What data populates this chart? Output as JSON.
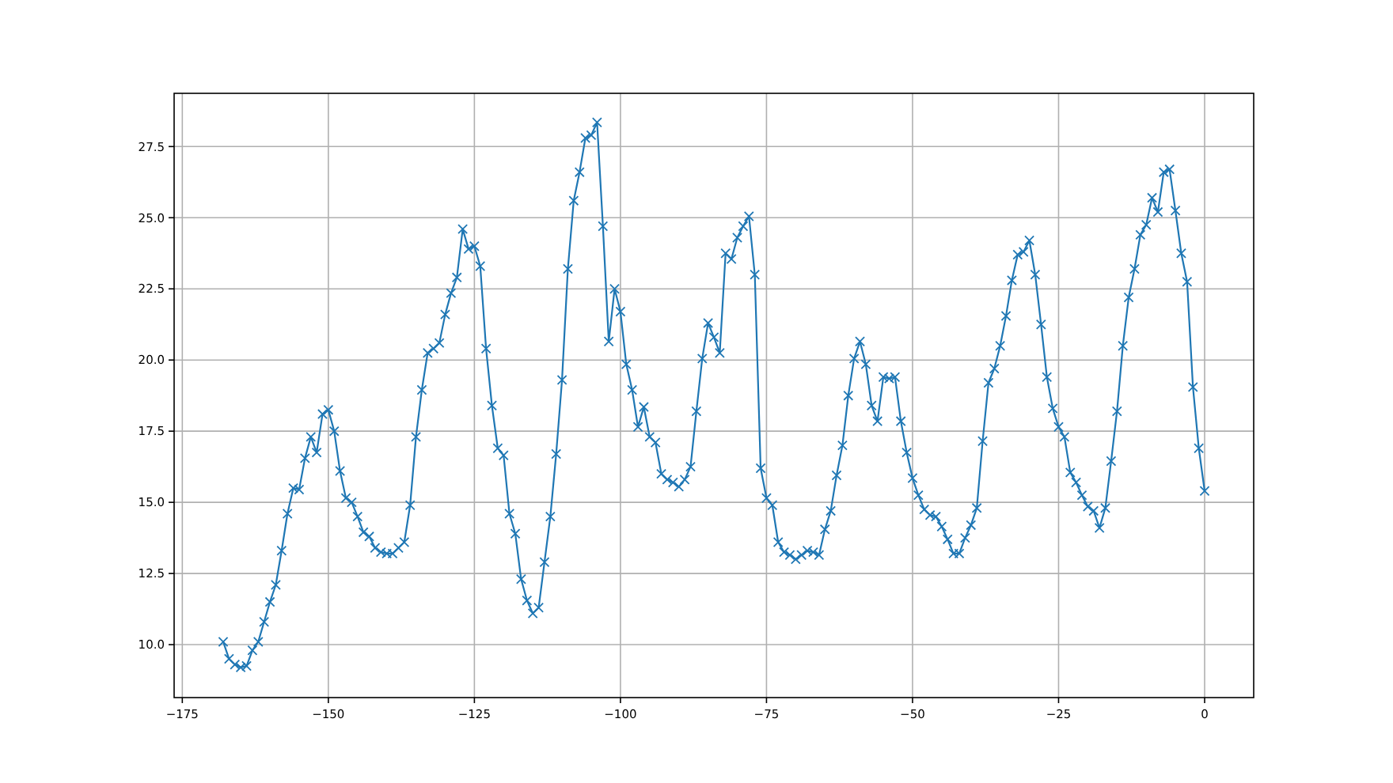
{
  "chart_data": {
    "type": "line",
    "x": [
      -168,
      -167,
      -166,
      -165,
      -164,
      -163,
      -162,
      -161,
      -160,
      -159,
      -158,
      -157,
      -156,
      -155,
      -154,
      -153,
      -152,
      -151,
      -150,
      -149,
      -148,
      -147,
      -146,
      -145,
      -144,
      -143,
      -142,
      -141,
      -140,
      -139,
      -138,
      -137,
      -136,
      -135,
      -134,
      -133,
      -132,
      -131,
      -130,
      -129,
      -128,
      -127,
      -126,
      -125,
      -124,
      -123,
      -122,
      -121,
      -120,
      -119,
      -118,
      -117,
      -116,
      -115,
      -114,
      -113,
      -112,
      -111,
      -110,
      -109,
      -108,
      -107,
      -106,
      -105,
      -104,
      -103,
      -102,
      -101,
      -100,
      -99,
      -98,
      -97,
      -96,
      -95,
      -94,
      -93,
      -92,
      -91,
      -90,
      -89,
      -88,
      -87,
      -86,
      -85,
      -84,
      -83,
      -82,
      -81,
      -80,
      -79,
      -78,
      -77,
      -76,
      -75,
      -74,
      -73,
      -72,
      -71,
      -70,
      -69,
      -68,
      -67,
      -66,
      -65,
      -64,
      -63,
      -62,
      -61,
      -60,
      -59,
      -58,
      -57,
      -56,
      -55,
      -54,
      -53,
      -52,
      -51,
      -50,
      -49,
      -48,
      -47,
      -46,
      -45,
      -44,
      -43,
      -42,
      -41,
      -40,
      -39,
      -38,
      -37,
      -36,
      -35,
      -34,
      -33,
      -32,
      -31,
      -30,
      -29,
      -28,
      -27,
      -26,
      -25,
      -24,
      -23,
      -22,
      -21,
      -20,
      -19,
      -18,
      -17,
      -16,
      -15,
      -14,
      -13,
      -12,
      -11,
      -10,
      -9,
      -8,
      -7,
      -6,
      -5,
      -4,
      -3,
      -2,
      -1,
      0
    ],
    "series": [
      {
        "color": "#1f77b4",
        "values": [
          10.1,
          9.5,
          9.3,
          9.2,
          9.25,
          9.8,
          10.1,
          10.8,
          11.5,
          12.1,
          13.3,
          14.6,
          15.5,
          15.45,
          16.55,
          17.3,
          16.75,
          18.1,
          18.25,
          17.5,
          16.1,
          15.15,
          15.0,
          14.5,
          13.95,
          13.8,
          13.4,
          13.25,
          13.2,
          13.2,
          13.4,
          13.6,
          14.9,
          17.3,
          18.95,
          20.25,
          20.4,
          20.6,
          21.6,
          22.35,
          22.9,
          24.6,
          23.9,
          24.0,
          23.3,
          20.4,
          18.4,
          16.9,
          16.65,
          14.6,
          13.9,
          12.3,
          11.55,
          11.1,
          11.3,
          12.9,
          14.5,
          16.7,
          19.3,
          23.2,
          25.6,
          26.6,
          27.8,
          27.9,
          28.35,
          24.7,
          20.65,
          22.5,
          21.7,
          19.85,
          18.95,
          17.65,
          18.35,
          17.3,
          17.1,
          16.0,
          15.8,
          15.7,
          15.55,
          15.8,
          16.25,
          18.2,
          20.05,
          21.3,
          20.8,
          20.25,
          23.75,
          23.55,
          24.3,
          24.7,
          25.05,
          23.0,
          16.2,
          15.15,
          14.9,
          13.6,
          13.25,
          13.15,
          13.0,
          13.15,
          13.3,
          13.25,
          13.15,
          14.05,
          14.7,
          15.95,
          17.0,
          18.75,
          20.05,
          20.65,
          19.85,
          18.4,
          17.85,
          19.4,
          19.35,
          19.4,
          17.85,
          16.75,
          15.85,
          15.25,
          14.75,
          14.55,
          14.5,
          14.15,
          13.7,
          13.2,
          13.2,
          13.75,
          14.2,
          14.8,
          17.15,
          19.2,
          19.7,
          20.5,
          21.55,
          22.8,
          23.7,
          23.8,
          24.2,
          23.0,
          21.25,
          19.4,
          18.3,
          17.65,
          17.3,
          16.05,
          15.7,
          15.25,
          14.85,
          14.7,
          14.1,
          14.8,
          16.45,
          18.2,
          20.5,
          22.2,
          23.2,
          24.4,
          24.75,
          25.7,
          25.2,
          26.6,
          26.7,
          25.25,
          23.75,
          22.75,
          19.05,
          16.9,
          15.4
        ]
      }
    ],
    "xlim": [
      -176.4,
      8.4
    ],
    "ylim": [
      8.14,
      29.37
    ],
    "xticks": [
      {
        "value": -175,
        "label": "−175"
      },
      {
        "value": -150,
        "label": "−150"
      },
      {
        "value": -125,
        "label": "−125"
      },
      {
        "value": -100,
        "label": "−100"
      },
      {
        "value": -75,
        "label": "−75"
      },
      {
        "value": -50,
        "label": "−50"
      },
      {
        "value": -25,
        "label": "−25"
      },
      0
    ],
    "yticks": [
      {
        "value": 10,
        "label": "10.0"
      },
      12.5,
      {
        "value": 15,
        "label": "15.0"
      },
      17.5,
      {
        "value": 20,
        "label": "20.0"
      },
      22.5,
      {
        "value": 25,
        "label": "25.0"
      },
      27.5
    ],
    "grid": true,
    "marker": "cross",
    "line_style": "solid"
  }
}
